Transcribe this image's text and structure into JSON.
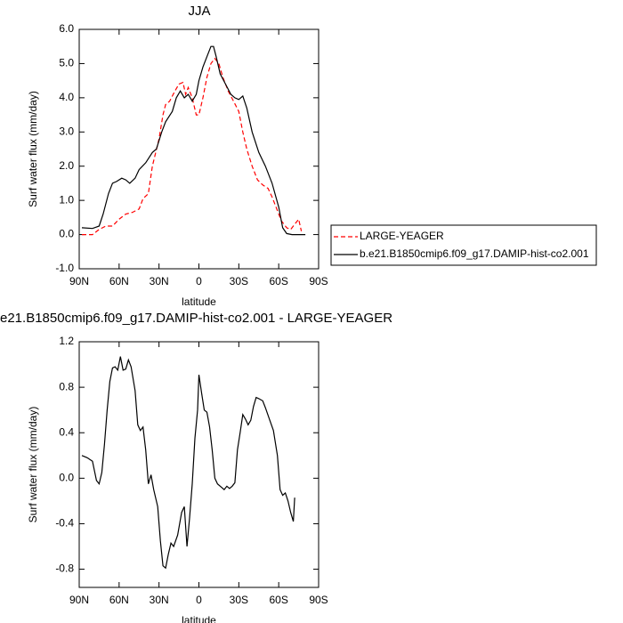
{
  "chart_data": [
    {
      "type": "line",
      "title": "JJA",
      "ylabel": "Surf water flux (mm/day)",
      "xlabel": "latitude",
      "xlim": [
        90,
        -90
      ],
      "xticks": [
        {
          "value": 90,
          "label": "90N"
        },
        {
          "value": 60,
          "label": "60N"
        },
        {
          "value": 30,
          "label": "30N"
        },
        0,
        {
          "value": -30,
          "label": "30S"
        },
        {
          "value": -60,
          "label": "60S"
        },
        {
          "value": -90,
          "label": "90S"
        }
      ],
      "ylim": [
        -1,
        6
      ],
      "yticks": [
        {
          "value": -1,
          "label": "-1.0"
        },
        {
          "value": 0,
          "label": "0.0"
        },
        {
          "value": 1,
          "label": "1.0"
        },
        {
          "value": 2,
          "label": "2.0"
        },
        {
          "value": 3,
          "label": "3.0"
        },
        {
          "value": 4,
          "label": "4.0"
        },
        {
          "value": 5,
          "label": "5.0"
        },
        {
          "value": 6,
          "label": "6.0"
        }
      ],
      "legend": "right",
      "series": [
        {
          "name": "LARGE-YEAGER",
          "color": "#ff0000",
          "linestyle": "dashed",
          "x": [
            88,
            80,
            75,
            70,
            65,
            60,
            55,
            50,
            45,
            42,
            38,
            35,
            30,
            27,
            25,
            22,
            18,
            15,
            12,
            10,
            8,
            5,
            2,
            0,
            -3,
            -6,
            -9,
            -12,
            -15,
            -18,
            -22,
            -26,
            -30,
            -33,
            -36,
            -40,
            -44,
            -48,
            -52,
            -55,
            -58,
            -62,
            -66,
            -69,
            -73,
            -75,
            -77
          ],
          "values": [
            0,
            0,
            0.15,
            0.25,
            0.25,
            0.45,
            0.6,
            0.65,
            0.75,
            1.05,
            1.2,
            2.0,
            2.8,
            3.5,
            3.8,
            3.9,
            4.2,
            4.4,
            4.45,
            4.1,
            4.3,
            4.0,
            3.5,
            3.5,
            4.0,
            4.6,
            5.0,
            5.15,
            5.0,
            4.6,
            4.2,
            3.9,
            3.6,
            3.0,
            2.5,
            2.0,
            1.6,
            1.45,
            1.35,
            1.1,
            0.8,
            0.4,
            0.2,
            0.15,
            0.35,
            0.45,
            0.1
          ]
        },
        {
          "name": "b.e21.B1850cmip6.f09_g17.DAMIP-hist-co2.001",
          "color": "#000000",
          "linestyle": "solid",
          "x": [
            88,
            80,
            75,
            72,
            68,
            65,
            62,
            58,
            55,
            52,
            48,
            45,
            40,
            35,
            32,
            28,
            25,
            20,
            17,
            14,
            11,
            8,
            5,
            2,
            0,
            -3,
            -6,
            -9,
            -11,
            -13,
            -16,
            -20,
            -24,
            -27,
            -30,
            -33,
            -36,
            -40,
            -45,
            -50,
            -55,
            -60,
            -63,
            -66,
            -70,
            -75,
            -80
          ],
          "values": [
            0.2,
            0.18,
            0.25,
            0.6,
            1.2,
            1.5,
            1.55,
            1.65,
            1.6,
            1.5,
            1.65,
            1.9,
            2.1,
            2.4,
            2.5,
            3.0,
            3.3,
            3.6,
            4.0,
            4.2,
            4.0,
            4.1,
            3.9,
            4.1,
            4.5,
            4.9,
            5.2,
            5.5,
            5.5,
            5.2,
            4.7,
            4.4,
            4.1,
            4.0,
            3.95,
            4.05,
            3.7,
            3.0,
            2.4,
            2.0,
            1.5,
            0.8,
            0.2,
            0.03,
            0.0,
            0.0,
            0.0
          ]
        }
      ]
    },
    {
      "type": "line",
      "title": "e21.B1850cmip6.f09_g17.DAMIP-hist-co2.001 - LARGE-YEAGER",
      "ylabel": "Surf water flux (mm/day)",
      "xlabel": "latitude",
      "xlim": [
        90,
        -90
      ],
      "xticks": [
        {
          "value": 90,
          "label": "90N"
        },
        {
          "value": 60,
          "label": "60N"
        },
        {
          "value": 30,
          "label": "30N"
        },
        0,
        {
          "value": -30,
          "label": "30S"
        },
        {
          "value": -60,
          "label": "60S"
        },
        {
          "value": -90,
          "label": "90S"
        }
      ],
      "ylim": [
        -0.96,
        1.2
      ],
      "yticks": [
        -0.8,
        -0.4,
        {
          "value": 0,
          "label": "0.0"
        },
        0.4,
        0.8,
        1.2
      ],
      "color": "#000000",
      "x": [
        88,
        84,
        80,
        77,
        75,
        73,
        71,
        69,
        67,
        65,
        63,
        61,
        59,
        57,
        55,
        53,
        51,
        48,
        46,
        44,
        42,
        40,
        38,
        36,
        34,
        31,
        29,
        27,
        25,
        23,
        21,
        19,
        16,
        13,
        11,
        9,
        7,
        5,
        3,
        1,
        0,
        -2,
        -4,
        -6,
        -8,
        -10,
        -12,
        -14,
        -17,
        -19,
        -21,
        -23,
        -25,
        -27,
        -29,
        -31,
        -33,
        -35,
        -37,
        -39,
        -41,
        -43,
        -45,
        -48,
        -50,
        -53,
        -56,
        -59,
        -61,
        -63,
        -65,
        -67,
        -69,
        -71,
        -72
      ],
      "values": [
        0.2,
        0.18,
        0.15,
        -0.02,
        -0.05,
        0.05,
        0.3,
        0.6,
        0.85,
        0.97,
        0.98,
        0.95,
        1.07,
        0.95,
        0.96,
        1.04,
        0.98,
        0.77,
        0.47,
        0.42,
        0.45,
        0.25,
        -0.05,
        0.03,
        -0.1,
        -0.25,
        -0.55,
        -0.77,
        -0.79,
        -0.67,
        -0.57,
        -0.6,
        -0.5,
        -0.3,
        -0.25,
        -0.6,
        -0.35,
        -0.05,
        0.35,
        0.6,
        0.91,
        0.75,
        0.6,
        0.58,
        0.45,
        0.25,
        0.0,
        -0.05,
        -0.08,
        -0.1,
        -0.07,
        -0.09,
        -0.07,
        -0.04,
        0.25,
        0.4,
        0.56,
        0.52,
        0.47,
        0.51,
        0.63,
        0.71,
        0.7,
        0.68,
        0.62,
        0.52,
        0.42,
        0.2,
        -0.1,
        -0.15,
        -0.13,
        -0.2,
        -0.3,
        -0.38,
        -0.17
      ]
    }
  ]
}
